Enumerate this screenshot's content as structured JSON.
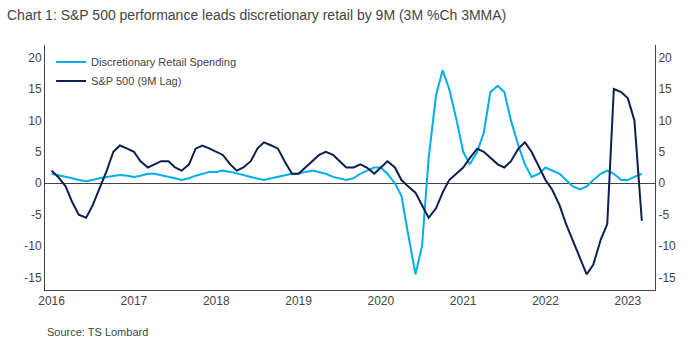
{
  "chart_data": {
    "type": "line",
    "title": "Chart 1: S&P 500 performance leads discretionary retail by 9M (3M %Ch 3MMA)",
    "annotations": [
      "Source: TS Lombard"
    ],
    "x": [
      2016.0,
      2016.08,
      2016.17,
      2016.25,
      2016.33,
      2016.42,
      2016.5,
      2016.58,
      2016.67,
      2016.75,
      2016.83,
      2016.92,
      2017.0,
      2017.08,
      2017.17,
      2017.25,
      2017.33,
      2017.42,
      2017.5,
      2017.58,
      2017.67,
      2017.75,
      2017.83,
      2017.92,
      2018.0,
      2018.08,
      2018.17,
      2018.25,
      2018.33,
      2018.42,
      2018.5,
      2018.58,
      2018.67,
      2018.75,
      2018.83,
      2018.92,
      2019.0,
      2019.08,
      2019.17,
      2019.25,
      2019.33,
      2019.42,
      2019.5,
      2019.58,
      2019.67,
      2019.75,
      2019.83,
      2019.92,
      2020.0,
      2020.08,
      2020.17,
      2020.25,
      2020.33,
      2020.42,
      2020.5,
      2020.58,
      2020.67,
      2020.75,
      2020.83,
      2020.92,
      2021.0,
      2021.08,
      2021.17,
      2021.25,
      2021.33,
      2021.42,
      2021.5,
      2021.58,
      2021.67,
      2021.75,
      2021.83,
      2021.92,
      2022.0,
      2022.08,
      2022.17,
      2022.25,
      2022.33,
      2022.42,
      2022.5,
      2022.58,
      2022.67,
      2022.75,
      2022.83,
      2022.92,
      2023.0,
      2023.08,
      2023.17
    ],
    "series": [
      {
        "name": "Discretionary Retail Spending",
        "color": "#00AEEF",
        "values": [
          1.5,
          1.3,
          1.0,
          0.8,
          0.5,
          0.3,
          0.5,
          0.8,
          1.0,
          1.2,
          1.3,
          1.2,
          1.0,
          1.2,
          1.5,
          1.5,
          1.3,
          1.0,
          0.8,
          0.5,
          0.8,
          1.2,
          1.5,
          1.8,
          1.8,
          2.0,
          1.8,
          1.5,
          1.3,
          1.0,
          0.8,
          0.5,
          0.8,
          1.0,
          1.2,
          1.5,
          1.5,
          1.8,
          2.0,
          1.8,
          1.5,
          1.0,
          0.8,
          0.5,
          0.8,
          1.5,
          2.0,
          2.5,
          2.5,
          1.5,
          0.0,
          -2.0,
          -8.0,
          -14.5,
          -10.0,
          4.0,
          14.0,
          18.0,
          15.0,
          10.0,
          5.0,
          3.0,
          5.0,
          8.0,
          14.5,
          15.5,
          14.5,
          10.0,
          6.0,
          3.0,
          1.0,
          1.5,
          2.5,
          2.0,
          1.5,
          0.5,
          -0.5,
          -1.0,
          -0.5,
          0.5,
          1.5,
          2.0,
          1.5,
          0.5,
          0.5,
          1.0,
          1.5
        ]
      },
      {
        "name": "S&P 500 (9M Lag)",
        "color": "#0D1F4E",
        "values": [
          2.0,
          1.0,
          -0.5,
          -3.0,
          -5.0,
          -5.5,
          -3.5,
          -1.0,
          2.0,
          5.0,
          6.0,
          5.5,
          5.0,
          3.5,
          2.5,
          3.0,
          3.5,
          3.5,
          2.5,
          2.0,
          3.0,
          5.5,
          6.0,
          5.5,
          5.0,
          4.5,
          3.0,
          2.0,
          2.5,
          3.5,
          5.5,
          6.5,
          6.0,
          5.5,
          3.5,
          1.5,
          1.5,
          2.5,
          3.5,
          4.5,
          5.0,
          4.5,
          3.5,
          2.5,
          2.5,
          3.0,
          2.5,
          1.5,
          2.5,
          3.5,
          2.5,
          0.5,
          -0.5,
          -1.5,
          -3.5,
          -5.5,
          -4.0,
          -1.5,
          0.5,
          1.5,
          2.5,
          4.0,
          5.5,
          5.0,
          4.0,
          3.0,
          2.5,
          3.5,
          5.5,
          6.5,
          5.0,
          2.5,
          0.5,
          -1.0,
          -3.5,
          -6.5,
          -9.0,
          -12.0,
          -14.5,
          -13.0,
          -9.0,
          -6.5,
          15.0,
          14.5,
          13.5,
          10.0,
          -6.0
        ]
      }
    ],
    "xlim": [
      2015.92,
      2023.33
    ],
    "xticks": [
      2016,
      2017,
      2018,
      2019,
      2020,
      2021,
      2022,
      2023
    ],
    "ylim": [
      -17,
      22
    ],
    "yticks": [
      -15,
      -10,
      -5,
      0,
      5,
      10,
      15,
      20
    ],
    "y2lim": [
      -17,
      22
    ],
    "y2ticks": [
      -15,
      -10,
      -5,
      0,
      5,
      10,
      15,
      20
    ],
    "grid": false,
    "legend": "upper left"
  }
}
